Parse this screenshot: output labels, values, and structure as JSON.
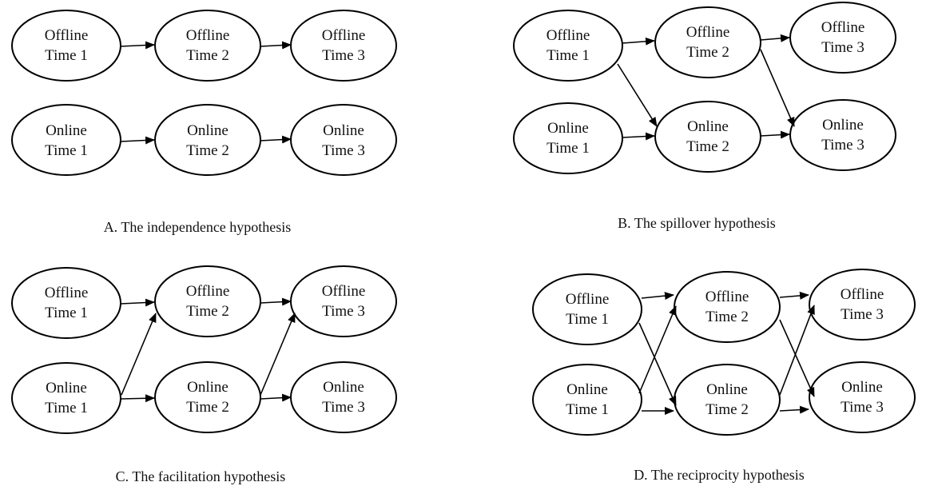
{
  "diagrams": {
    "a": {
      "caption": "A. The independence hypothesis",
      "nodes": {
        "off1": [
          "Offline",
          "Time 1"
        ],
        "off2": [
          "Offline",
          "Time 2"
        ],
        "off3": [
          "Offline",
          "Time 3"
        ],
        "on1": [
          "Online",
          "Time 1"
        ],
        "on2": [
          "Online",
          "Time 2"
        ],
        "on3": [
          "Online",
          "Time 3"
        ]
      },
      "edges": [
        [
          "off1",
          "off2"
        ],
        [
          "off2",
          "off3"
        ],
        [
          "on1",
          "on2"
        ],
        [
          "on2",
          "on3"
        ]
      ]
    },
    "b": {
      "caption": "B. The spillover hypothesis",
      "nodes": {
        "off1": [
          "Offline",
          "Time 1"
        ],
        "off2": [
          "Offline",
          "Time 2"
        ],
        "off3": [
          "Offline",
          "Time 3"
        ],
        "on1": [
          "Online",
          "Time 1"
        ],
        "on2": [
          "Online",
          "Time 2"
        ],
        "on3": [
          "Online",
          "Time 3"
        ]
      },
      "edges": [
        [
          "off1",
          "off2"
        ],
        [
          "off2",
          "off3"
        ],
        [
          "on1",
          "on2"
        ],
        [
          "on2",
          "on3"
        ],
        [
          "off1",
          "on2"
        ],
        [
          "off2",
          "on3"
        ]
      ]
    },
    "c": {
      "caption": "C. The facilitation hypothesis",
      "nodes": {
        "off1": [
          "Offline",
          "Time 1"
        ],
        "off2": [
          "Offline",
          "Time 2"
        ],
        "off3": [
          "Offline",
          "Time 3"
        ],
        "on1": [
          "Online",
          "Time 1"
        ],
        "on2": [
          "Online",
          "Time 2"
        ],
        "on3": [
          "Online",
          "Time 3"
        ]
      },
      "edges": [
        [
          "off1",
          "off2"
        ],
        [
          "off2",
          "off3"
        ],
        [
          "on1",
          "on2"
        ],
        [
          "on2",
          "on3"
        ],
        [
          "on1",
          "off2"
        ],
        [
          "on2",
          "off3"
        ]
      ]
    },
    "d": {
      "caption": "D. The reciprocity hypothesis",
      "nodes": {
        "off1": [
          "Offline",
          "Time 1"
        ],
        "off2": [
          "Offline",
          "Time 2"
        ],
        "off3": [
          "Offline",
          "Time 3"
        ],
        "on1": [
          "Online",
          "Time 1"
        ],
        "on2": [
          "Online",
          "Time 2"
        ],
        "on3": [
          "Online",
          "Time 3"
        ]
      },
      "edges": [
        [
          "off1",
          "off2"
        ],
        [
          "off2",
          "off3"
        ],
        [
          "on1",
          "on2"
        ],
        [
          "on2",
          "on3"
        ],
        [
          "off1",
          "on2"
        ],
        [
          "on1",
          "off2"
        ],
        [
          "off2",
          "on3"
        ],
        [
          "on2",
          "off3"
        ]
      ]
    }
  }
}
